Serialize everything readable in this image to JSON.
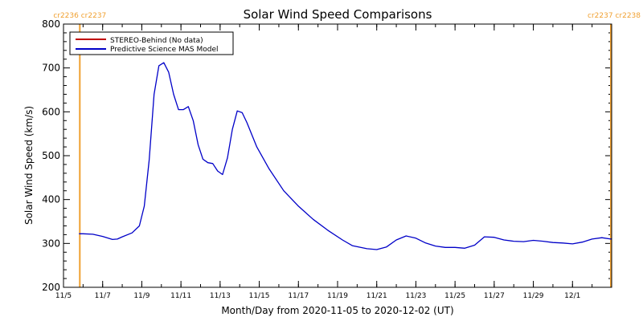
{
  "chart_data": {
    "type": "line",
    "title": "Solar Wind Speed Comparisons",
    "xlabel": "Month/Day from 2020-11-05 to 2020-12-02 (UT)",
    "ylabel": "Solar Wind Speed (km/s)",
    "x_range": [
      "2020-11-05",
      "2020-12-02"
    ],
    "ylim": [
      200,
      800
    ],
    "yticks": [
      200,
      300,
      400,
      500,
      600,
      700,
      800
    ],
    "xticks": [
      {
        "date": "2020-11-05",
        "label": "11/5"
      },
      {
        "date": "2020-11-07",
        "label": "11/7"
      },
      {
        "date": "2020-11-09",
        "label": "11/9"
      },
      {
        "date": "2020-11-11",
        "label": "11/11"
      },
      {
        "date": "2020-11-13",
        "label": "11/13"
      },
      {
        "date": "2020-11-15",
        "label": "11/15"
      },
      {
        "date": "2020-11-17",
        "label": "11/17"
      },
      {
        "date": "2020-11-19",
        "label": "11/19"
      },
      {
        "date": "2020-11-21",
        "label": "11/21"
      },
      {
        "date": "2020-11-23",
        "label": "11/23"
      },
      {
        "date": "2020-11-25",
        "label": "11/25"
      },
      {
        "date": "2020-11-27",
        "label": "11/27"
      },
      {
        "date": "2020-11-29",
        "label": "11/29"
      },
      {
        "date": "2020-12-01",
        "label": "12/1"
      }
    ],
    "grid": false,
    "legend_position": "top-left",
    "carrington_markers": [
      {
        "date": "2020-11-05 20:00",
        "label_left": "cr2236",
        "label_right": "cr2237"
      },
      {
        "date": "2020-12-02 23:59",
        "label_left": "cr2237",
        "label_right": "cr2238"
      }
    ],
    "marker_color": "#f0a030",
    "series": [
      {
        "name": "STEREO-Behind (No data)",
        "color": "#c00000",
        "points": []
      },
      {
        "name": "Predictive Science MAS Model",
        "color": "#0000c8",
        "points": [
          [
            "2020-11-05 19:00",
            322
          ],
          [
            "2020-11-06 00:00",
            322
          ],
          [
            "2020-11-06 12:00",
            321
          ],
          [
            "2020-11-07 00:00",
            316
          ],
          [
            "2020-11-07 12:00",
            309
          ],
          [
            "2020-11-07 18:00",
            310
          ],
          [
            "2020-11-08 00:00",
            315
          ],
          [
            "2020-11-08 12:00",
            324
          ],
          [
            "2020-11-08 21:00",
            340
          ],
          [
            "2020-11-09 03:00",
            385
          ],
          [
            "2020-11-09 09:00",
            490
          ],
          [
            "2020-11-09 15:00",
            640
          ],
          [
            "2020-11-09 21:00",
            705
          ],
          [
            "2020-11-10 03:00",
            712
          ],
          [
            "2020-11-10 09:00",
            690
          ],
          [
            "2020-11-10 15:00",
            640
          ],
          [
            "2020-11-10 21:00",
            605
          ],
          [
            "2020-11-11 03:00",
            605
          ],
          [
            "2020-11-11 09:00",
            612
          ],
          [
            "2020-11-11 15:00",
            580
          ],
          [
            "2020-11-11 21:00",
            525
          ],
          [
            "2020-11-12 03:00",
            492
          ],
          [
            "2020-11-12 09:00",
            484
          ],
          [
            "2020-11-12 15:00",
            482
          ],
          [
            "2020-11-12 21:00",
            465
          ],
          [
            "2020-11-13 03:00",
            457
          ],
          [
            "2020-11-13 09:00",
            495
          ],
          [
            "2020-11-13 15:00",
            560
          ],
          [
            "2020-11-13 21:00",
            602
          ],
          [
            "2020-11-14 03:00",
            598
          ],
          [
            "2020-11-14 09:00",
            575
          ],
          [
            "2020-11-14 21:00",
            520
          ],
          [
            "2020-11-15 12:00",
            470
          ],
          [
            "2020-11-16 06:00",
            420
          ],
          [
            "2020-11-17 00:00",
            385
          ],
          [
            "2020-11-17 18:00",
            355
          ],
          [
            "2020-11-18 12:00",
            330
          ],
          [
            "2020-11-19 06:00",
            308
          ],
          [
            "2020-11-19 18:00",
            295
          ],
          [
            "2020-11-20 12:00",
            288
          ],
          [
            "2020-11-21 00:00",
            286
          ],
          [
            "2020-11-21 12:00",
            292
          ],
          [
            "2020-11-22 00:00",
            308
          ],
          [
            "2020-11-22 12:00",
            317
          ],
          [
            "2020-11-23 00:00",
            312
          ],
          [
            "2020-11-23 12:00",
            301
          ],
          [
            "2020-11-24 00:00",
            294
          ],
          [
            "2020-11-24 12:00",
            291
          ],
          [
            "2020-11-25 00:00",
            291
          ],
          [
            "2020-11-25 12:00",
            289
          ],
          [
            "2020-11-26 00:00",
            296
          ],
          [
            "2020-11-26 12:00",
            315
          ],
          [
            "2020-11-27 00:00",
            314
          ],
          [
            "2020-11-27 12:00",
            308
          ],
          [
            "2020-11-28 00:00",
            305
          ],
          [
            "2020-11-28 12:00",
            304
          ],
          [
            "2020-11-29 00:00",
            307
          ],
          [
            "2020-11-29 12:00",
            305
          ],
          [
            "2020-11-30 00:00",
            302
          ],
          [
            "2020-11-30 12:00",
            301
          ],
          [
            "2020-12-01 00:00",
            299
          ],
          [
            "2020-12-01 12:00",
            303
          ],
          [
            "2020-12-02 00:00",
            310
          ],
          [
            "2020-12-02 12:00",
            313
          ],
          [
            "2020-12-02 23:00",
            310
          ],
          [
            "2020-12-03 00:00",
            311
          ]
        ]
      }
    ]
  }
}
